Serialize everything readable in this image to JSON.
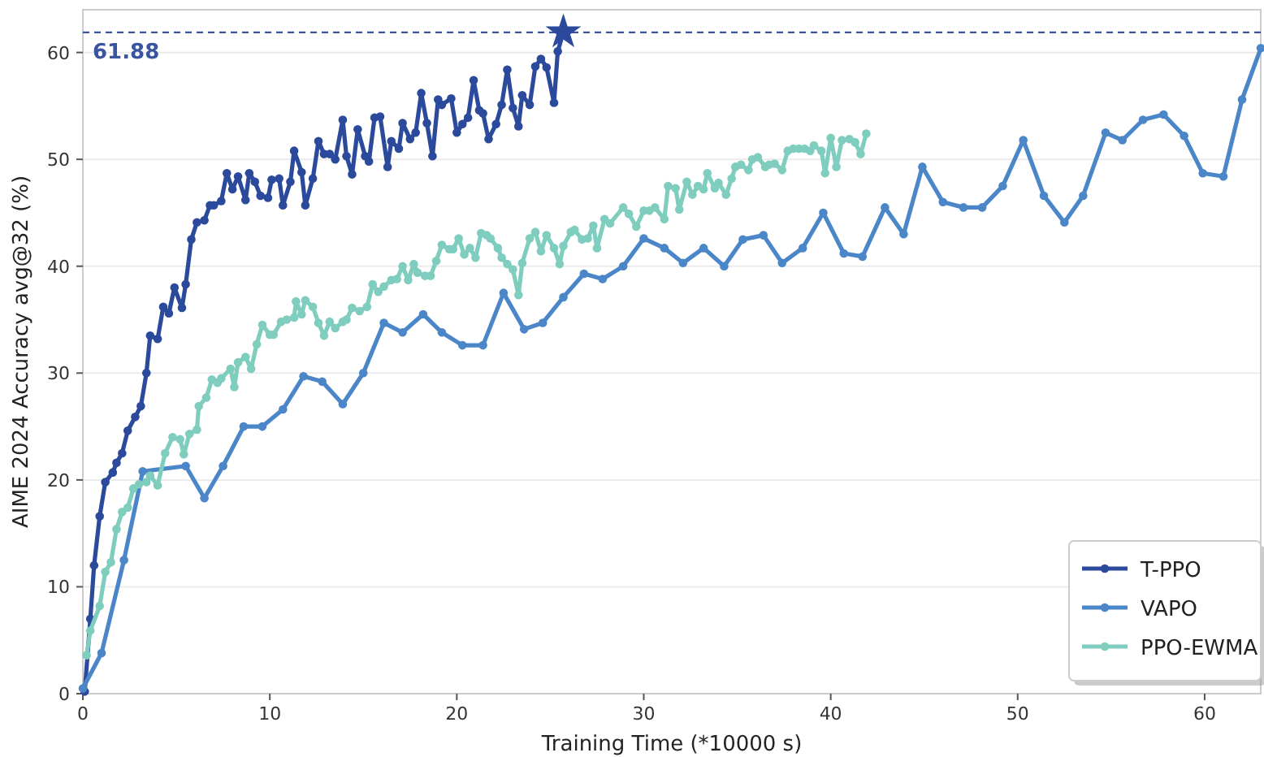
{
  "chart_data": {
    "type": "line",
    "xlabel": "Training Time (*10000 s)",
    "ylabel": "AIME 2024 Accuracy avg@32 (%)",
    "xlim": [
      0,
      63
    ],
    "ylim": [
      0,
      64
    ],
    "xticks": [
      0,
      10,
      20,
      30,
      40,
      50,
      60
    ],
    "yticks": [
      0,
      10,
      20,
      30,
      40,
      50,
      60
    ],
    "grid": "y",
    "legend": "bottom right",
    "marker": "circle",
    "line_style": "solid",
    "ref_lines": [
      {
        "axis": "y",
        "value": 61.88,
        "label": "61.88",
        "color": "#3a55a0",
        "line_style": "dashed"
      }
    ],
    "series": [
      {
        "name": "T-PPO",
        "color": "#2b4a9c",
        "x": [
          0.1,
          0.4,
          0.6,
          0.9,
          1.2,
          1.6,
          1.8,
          2.1,
          2.4,
          2.8,
          3.1,
          3.4,
          3.6,
          4,
          4.3,
          4.6,
          4.9,
          5.3,
          5.5,
          5.8,
          6.1,
          6.5,
          6.8,
          7,
          7.4,
          7.7,
          8,
          8.3,
          8.7,
          8.9,
          9.2,
          9.5,
          9.9,
          10.1,
          10.5,
          10.7,
          11.1,
          11.3,
          11.7,
          11.9,
          12.3,
          12.6,
          12.9,
          13.2,
          13.5,
          13.9,
          14.1,
          14.4,
          14.7,
          15.1,
          15.3,
          15.6,
          15.9,
          16.3,
          16.5,
          16.9,
          17.1,
          17.5,
          17.8,
          18.1,
          18.4,
          18.7,
          19,
          19.2,
          19.7,
          20,
          20.3,
          20.6,
          20.9,
          21.2,
          21.4,
          21.7,
          22.1,
          22.4,
          22.7,
          23,
          23.3,
          23.5,
          23.9,
          24.2,
          24.5,
          24.8,
          25.2,
          25.4,
          25.7
        ],
        "values": [
          0.2,
          7,
          12,
          16.6,
          19.8,
          20.7,
          21.6,
          22.5,
          24.6,
          25.9,
          26.9,
          30,
          33.5,
          33.2,
          36.2,
          35.6,
          38,
          36.1,
          38.3,
          42.5,
          44.1,
          44.3,
          45.7,
          45.7,
          46.1,
          48.7,
          47.2,
          48.4,
          46.2,
          48.7,
          47.9,
          46.6,
          46.4,
          48.1,
          48.2,
          45.7,
          47.9,
          50.8,
          48.8,
          45.7,
          48.2,
          51.7,
          50.5,
          50.5,
          50,
          53.7,
          50.3,
          48.6,
          52.8,
          50.3,
          49.8,
          53.9,
          54,
          49.3,
          51.7,
          51,
          53.4,
          51.9,
          52.5,
          56.2,
          53.4,
          50.3,
          55.6,
          55.1,
          55.7,
          52.5,
          53.3,
          53.9,
          57.4,
          54.6,
          54.3,
          51.9,
          53.3,
          55.1,
          58.4,
          54.8,
          53.1,
          56,
          55.1,
          58.7,
          59.4,
          58.6,
          55.3,
          60.1,
          61.9
        ]
      },
      {
        "name": "VAPO",
        "color": "#4a86c8",
        "x": [
          0,
          1,
          2.2,
          3.2,
          5.5,
          6.5,
          7.5,
          8.6,
          9.6,
          10.7,
          11.8,
          12.8,
          13.9,
          15,
          16.1,
          17.1,
          18.2,
          19.2,
          20.3,
          21.4,
          22.5,
          23.6,
          24.6,
          25.7,
          26.8,
          27.8,
          28.9,
          30,
          31.1,
          32.1,
          33.2,
          34.3,
          35.3,
          36.4,
          37.4,
          38.5,
          39.6,
          40.7,
          41.7,
          42.9,
          43.9,
          44.9,
          46,
          47.1,
          48.1,
          49.2,
          50.3,
          51.4,
          52.5,
          53.5,
          54.7,
          55.6,
          56.7,
          57.8,
          58.9,
          59.9,
          61,
          62,
          63
        ],
        "values": [
          0.5,
          3.8,
          12.5,
          20.8,
          21.3,
          18.3,
          21.3,
          25,
          25,
          26.6,
          29.7,
          29.2,
          27.1,
          30,
          34.7,
          33.8,
          35.5,
          33.8,
          32.6,
          32.6,
          37.5,
          34.1,
          34.7,
          37.1,
          39.3,
          38.8,
          40,
          42.6,
          41.7,
          40.3,
          41.7,
          40,
          42.5,
          42.9,
          40.3,
          41.7,
          45,
          41.2,
          40.9,
          45.5,
          43,
          49.3,
          46,
          45.5,
          45.5,
          47.5,
          51.8,
          46.6,
          44.1,
          46.6,
          52.5,
          51.8,
          53.7,
          54.2,
          52.2,
          48.7,
          48.4,
          55.6,
          60.4
        ]
      },
      {
        "name": "PPO-EWMA",
        "color": "#7fcdbf",
        "x": [
          0.2,
          0.4,
          0.9,
          1.2,
          1.5,
          1.8,
          2.1,
          2.4,
          2.7,
          3,
          3.4,
          3.6,
          4,
          4.4,
          4.8,
          5.2,
          5.4,
          5.7,
          6.1,
          6.2,
          6.6,
          6.9,
          7.2,
          7.4,
          7.9,
          8.1,
          8.3,
          8.7,
          9,
          9.3,
          9.6,
          10,
          10.2,
          10.6,
          10.9,
          11.3,
          11.4,
          11.7,
          11.9,
          12.3,
          12.6,
          12.9,
          13.2,
          13.5,
          13.9,
          14.1,
          14.4,
          14.8,
          15.2,
          15.5,
          15.8,
          16.1,
          16.5,
          16.8,
          17.1,
          17.4,
          17.7,
          17.9,
          18.3,
          18.6,
          18.9,
          19.2,
          19.6,
          19.8,
          20.1,
          20.4,
          20.7,
          21,
          21.3,
          21.6,
          21.8,
          22.2,
          22.4,
          22.7,
          23,
          23.3,
          23.5,
          23.9,
          24.2,
          24.5,
          24.8,
          25.2,
          25.5,
          25.7,
          26.1,
          26.3,
          26.7,
          27,
          27.3,
          27.5,
          27.9,
          28.2,
          28.9,
          29.2,
          29.6,
          30,
          30.3,
          30.6,
          31.1,
          31.3,
          31.7,
          31.9,
          32.3,
          32.6,
          32.9,
          33.2,
          33.4,
          33.8,
          34,
          34.4,
          34.7,
          34.9,
          35.2,
          35.6,
          35.8,
          36.1,
          36.5,
          36.7,
          37,
          37.4,
          37.7,
          38,
          38.3,
          38.6,
          38.9,
          39.1,
          39.5,
          39.7,
          40,
          40.3,
          40.6,
          41,
          41.3,
          41.6,
          41.9
        ],
        "values": [
          3.6,
          5.9,
          8.2,
          11.4,
          12.3,
          15.4,
          17,
          17.4,
          19.2,
          19.6,
          19.8,
          20.4,
          19.5,
          22.5,
          24,
          23.8,
          22.4,
          24.3,
          24.7,
          26.9,
          27.7,
          29.4,
          29.1,
          29.5,
          30.4,
          28.7,
          31,
          31.5,
          30.4,
          32.7,
          34.5,
          33.6,
          33.6,
          34.8,
          35,
          35.2,
          36.7,
          35.5,
          36.8,
          36.2,
          34.7,
          33.5,
          34.8,
          34.2,
          34.8,
          35,
          36.1,
          35.8,
          36.2,
          38.3,
          37.6,
          38.1,
          38.7,
          38.8,
          40,
          38.7,
          40.2,
          39.4,
          39.1,
          39.1,
          40.5,
          42,
          41.6,
          41.6,
          42.6,
          41.1,
          41.7,
          40.8,
          43.1,
          42.9,
          42.6,
          41.7,
          40.8,
          40.2,
          39.7,
          37.3,
          40.3,
          42.6,
          43.2,
          41.4,
          42.9,
          41.7,
          40.2,
          41.9,
          43.2,
          43.4,
          42.5,
          42.6,
          43.8,
          41.7,
          44.4,
          44,
          45.5,
          44.9,
          43.7,
          45.2,
          45.2,
          45.5,
          44.4,
          47.5,
          47.3,
          45.3,
          47.9,
          46.7,
          47.5,
          47.2,
          48.7,
          47.3,
          47.8,
          46.7,
          48.2,
          49.3,
          49.5,
          49,
          50,
          50.2,
          49.3,
          49.5,
          49.6,
          49,
          50.8,
          51,
          51,
          51,
          50.8,
          51.3,
          50.8,
          48.7,
          52,
          49.3,
          51.8,
          51.9,
          51.6,
          50.5,
          52.4
        ]
      },
      {
        "type": "scatter",
        "marker": "star",
        "color": "#2b4a9c",
        "x": [
          25.7
        ],
        "values": [
          61.9
        ]
      }
    ]
  }
}
